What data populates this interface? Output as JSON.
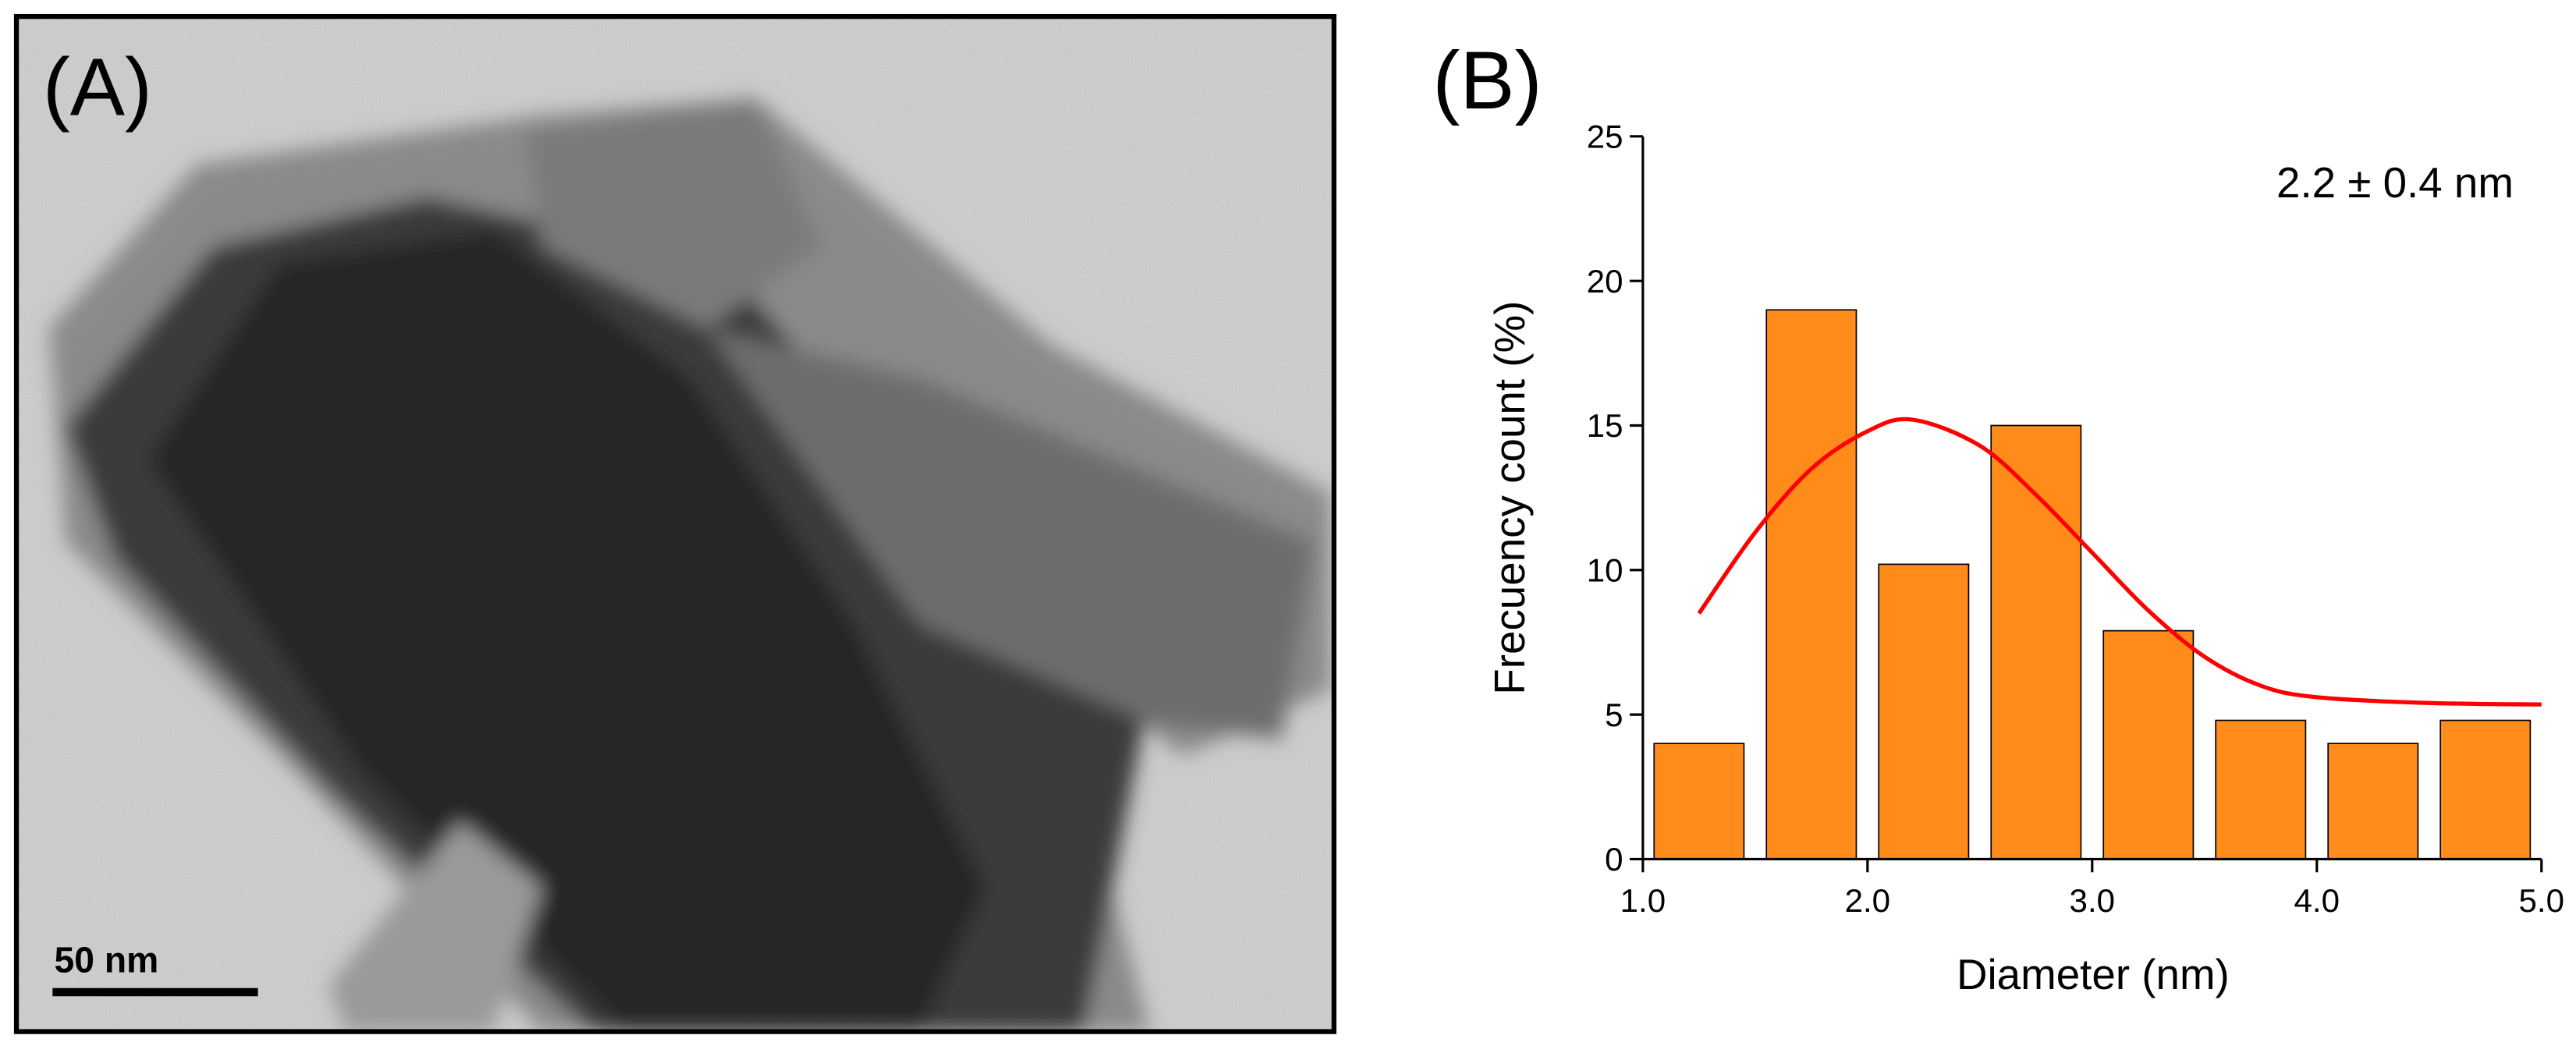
{
  "image_panel": {
    "label": "(A)",
    "scale_bar": "50 nm"
  },
  "chart_data": {
    "type": "histogram",
    "panel_label": "(B)",
    "xlabel": "Diameter (nm)",
    "ylabel": "Frecuency count (%)",
    "annotation": "2.2 ± 0.4 nm",
    "bins": [
      1.0,
      1.5,
      2.0,
      2.5,
      3.0,
      3.5,
      4.0,
      4.5,
      5.0
    ],
    "values": [
      4,
      19,
      10.2,
      15,
      7.9,
      4.8,
      4,
      4.8
    ],
    "color": "#ff8c1a",
    "fit": {
      "color": "#ff0000",
      "x": [
        1.25,
        1.5,
        1.75,
        2.0,
        2.2,
        2.5,
        2.75,
        3.0,
        3.25,
        3.5,
        3.75,
        4.0,
        4.5,
        5.0
      ],
      "values": [
        8.5,
        11.3,
        13.5,
        14.8,
        15.2,
        14.3,
        12.6,
        10.6,
        8.6,
        7.0,
        6.0,
        5.6,
        5.4,
        5.35
      ]
    },
    "xlim": [
      1.0,
      5.0
    ],
    "xticks": [
      {
        "value": 1.0,
        "label": "1.0"
      },
      {
        "value": 2.0,
        "label": "2.0"
      },
      {
        "value": 3.0,
        "label": "3.0"
      },
      {
        "value": 4.0,
        "label": "4.0"
      },
      {
        "value": 5.0,
        "label": "5.0"
      }
    ],
    "ylim": [
      0,
      25
    ],
    "yticks": [
      0,
      5,
      10,
      15,
      20,
      25
    ]
  }
}
